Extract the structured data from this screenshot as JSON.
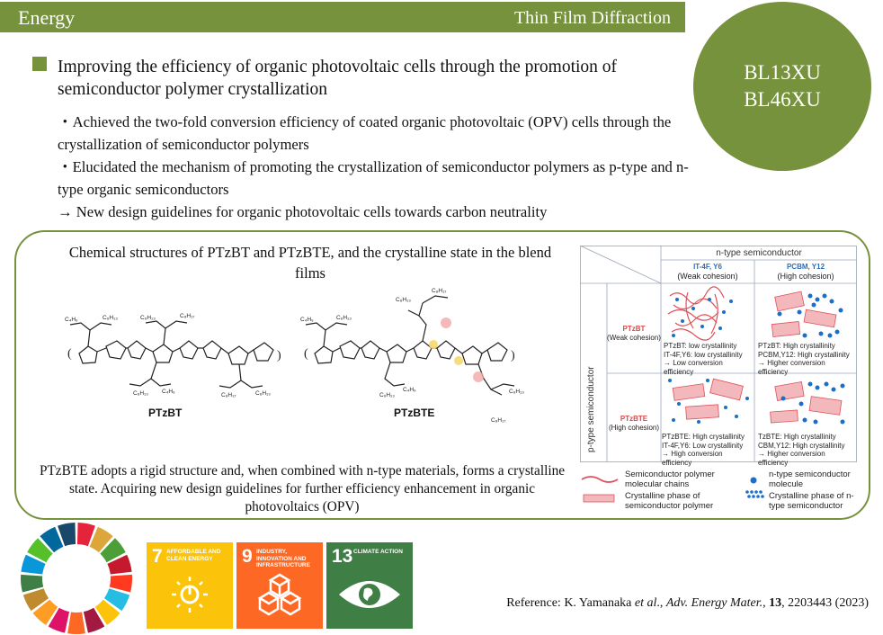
{
  "header": {
    "category": "Energy",
    "topic": "Thin Film Diffraction"
  },
  "beamlines": [
    "BL13XU",
    "BL46XU"
  ],
  "title": "Improving the efficiency of organic photovoltaic cells through the promotion of semiconductor polymer crystallization",
  "bullets": [
    "・Achieved the two-fold conversion efficiency of coated organic photovoltaic (OPV) cells through the crystallization of semiconductor polymers",
    "・Elucidated the mechanism of promoting the crystallization of semiconductor polymers as p-type and n-type organic semiconductors",
    "→ New design guidelines for organic photovoltaic cells towards carbon neutrality"
  ],
  "figure": {
    "title": "Chemical structures of PTzBT and PTzBTE, and the crystalline state in the blend films",
    "caption": "PTzBTE adopts a rigid structure and, when combined with n-type materials, forms a crystalline state. Acquiring new design guidelines for further efficiency enhancement in organic photovoltaics (OPV)",
    "molecules": [
      "PTzBT",
      "PTzBTE"
    ],
    "table": {
      "col_header": "n-type semiconductor",
      "row_header": "p-type semiconductor",
      "cols": [
        {
          "name": "IT-4F, Y6",
          "note": "(Weak cohesion)"
        },
        {
          "name": "PCBM, Y12",
          "note": "(High cohesion)"
        }
      ],
      "rows": [
        {
          "name": "PTzBT",
          "note": "(Weak cohesion)"
        },
        {
          "name": "PTzBTE",
          "note": "(High cohesion)"
        }
      ],
      "cells": [
        "PTzBT: low crystallinity\nIT-4F,Y6: low crystallinity\n→ Low conversion efficiency",
        "PTzBT: High crystallinity\nPCBM,Y12: High crystallinity\n→ Higher conversion efficiency",
        "PTzBTE: High crystallinity\nIT-4F,Y6: Low crystallinity\n→ High conversion efficiency",
        "TzBTE: High crystallinity\nCBM,Y12: High crystallinity\n→ Higher conversion efficiency"
      ]
    },
    "legend": [
      "Semiconductor polymer molecular chains",
      "n-type semiconductor molecule",
      "Crystalline phase of semiconductor polymer",
      "Crystalline phase of n-type semiconductor"
    ]
  },
  "sdgs": [
    {
      "num": "7",
      "label": "AFFORDABLE AND CLEAN ENERGY",
      "color": "#fcc30b"
    },
    {
      "num": "9",
      "label": "INDUSTRY, INNOVATION AND INFRASTRUCTURE",
      "color": "#fd6925"
    },
    {
      "num": "13",
      "label": "CLIMATE ACTION",
      "color": "#3f7e44"
    }
  ],
  "reference": {
    "prefix": "Reference: K. Yamanaka ",
    "etal": "et al",
    "sep": "., ",
    "journal": "Adv. Energy Mater.",
    "comma": ", ",
    "volume": "13",
    "rest": ", 2203443 (2023)"
  },
  "colors": {
    "accent": "#76923c",
    "polymer": "#e0505a",
    "nmol": "#1c6fc8"
  }
}
